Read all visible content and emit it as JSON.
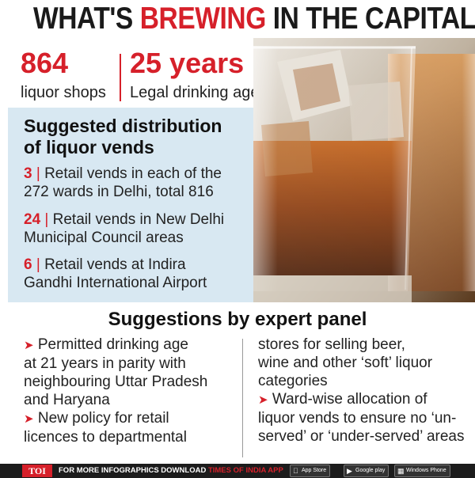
{
  "headline": {
    "part1": "WHAT'S ",
    "highlight": "BREWING",
    "part2": " IN THE CAPITAL"
  },
  "stats": [
    {
      "number": "864",
      "label": "liquor shops"
    },
    {
      "number": "25 years",
      "label": "Legal drinking age"
    }
  ],
  "distribution": {
    "title_line1": "Suggested distribution",
    "title_line2": "of liquor vends",
    "items": [
      {
        "number": "3",
        "line1": "Retail vends in each of the",
        "line2": "272 wards in Delhi, total 816"
      },
      {
        "number": "24",
        "line1": "Retail vends in New Delhi",
        "line2": "Municipal Council areas"
      },
      {
        "number": "6",
        "line1": "Retail vends at Indira",
        "line2": "Gandhi International Airport"
      }
    ]
  },
  "panel": {
    "title": "Suggestions by expert panel",
    "left_lines": [
      "Permitted drinking age",
      "at 21 years in parity with",
      "neighbouring Uttar Pradesh",
      "and Haryana",
      "New policy for retail",
      "licences to departmental"
    ],
    "right_lines": [
      "stores for selling beer,",
      "wine and other ‘soft’ liquor",
      "categories",
      "Ward-wise allocation of",
      "liquor vends to ensure no ‘un-",
      "served’ or ‘under-served’ areas"
    ]
  },
  "footer": {
    "logo": "TOI",
    "text": "FOR MORE  INFOGRAPHICS DOWNLOAD ",
    "app_name": "TIMES OF INDIA APP",
    "badges": [
      {
        "label": "App Store",
        "icon": "apple-icon"
      },
      {
        "label": "Google play",
        "icon": "play-icon"
      },
      {
        "label": "Windows Phone",
        "icon": "windows-icon"
      }
    ]
  },
  "colors": {
    "accent": "#d6202a",
    "panel_bg": "#d8e8f2",
    "footer_bg": "#1c1c1c"
  }
}
